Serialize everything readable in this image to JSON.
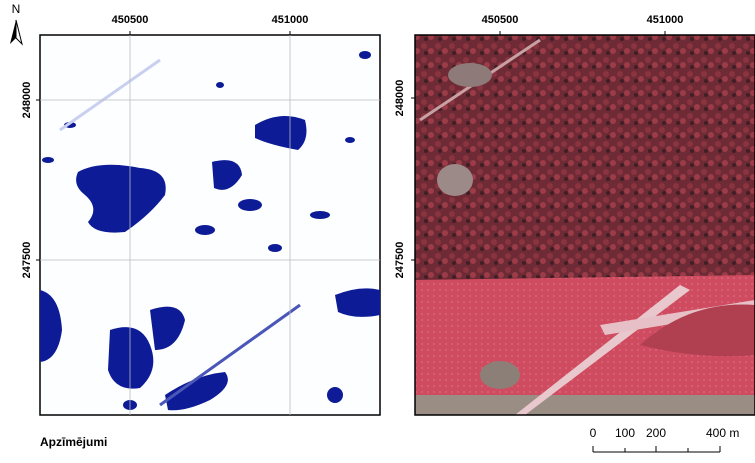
{
  "north_label": "N",
  "left_map": {
    "x_labels": [
      450500,
      451000
    ],
    "y_labels": [
      248000,
      247500
    ]
  },
  "right_map": {
    "x_labels": [
      450500,
      451000
    ],
    "y_labels": [
      248000,
      247500
    ]
  },
  "legend": {
    "title": "Apzīmējumi"
  },
  "scale_bar": {
    "labels": [
      "0",
      "100",
      "200",
      "400 m"
    ]
  }
}
